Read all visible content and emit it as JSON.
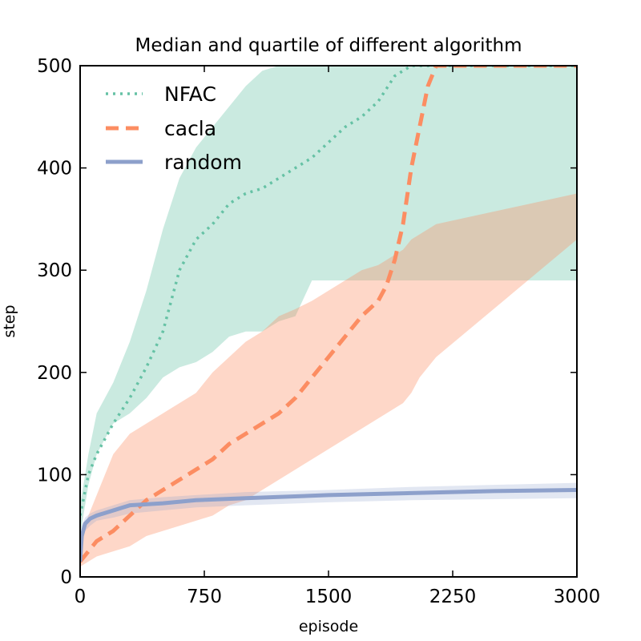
{
  "chart_data": {
    "type": "line",
    "title": "Median and quartile of different algorithm",
    "xlabel": "episode",
    "ylabel": "step",
    "xlim": [
      0,
      3000
    ],
    "ylim": [
      0,
      500
    ],
    "xticks": [
      0,
      750,
      1500,
      2250,
      3000
    ],
    "yticks": [
      0,
      100,
      200,
      300,
      400,
      500
    ],
    "xtick_labels": [
      "0",
      "750",
      "1500",
      "2250",
      "3000"
    ],
    "ytick_labels": [
      "0",
      "100",
      "200",
      "300",
      "400",
      "500"
    ],
    "grid": false,
    "legend_position": "top-left",
    "series": [
      {
        "name": "NFAC",
        "color": "#66c2a5",
        "line_style": "dotted",
        "x": [
          0,
          50,
          100,
          200,
          300,
          400,
          500,
          600,
          700,
          800,
          900,
          1000,
          1100,
          1200,
          1300,
          1400,
          1500,
          1600,
          1700,
          1800,
          1900,
          2000,
          2100,
          2200,
          3000
        ],
        "y": [
          60,
          100,
          120,
          150,
          175,
          205,
          240,
          300,
          330,
          345,
          365,
          375,
          380,
          390,
          400,
          410,
          425,
          440,
          450,
          465,
          490,
          500,
          500,
          500,
          500
        ],
        "lower": [
          40,
          90,
          120,
          150,
          160,
          175,
          195,
          205,
          210,
          220,
          235,
          240,
          240,
          250,
          255,
          290,
          290,
          290,
          290,
          290,
          290,
          290,
          290,
          290,
          290
        ],
        "upper": [
          70,
          120,
          160,
          190,
          230,
          280,
          340,
          390,
          420,
          440,
          460,
          480,
          495,
          500,
          500,
          500,
          500,
          500,
          500,
          500,
          500,
          500,
          500,
          500,
          500
        ]
      },
      {
        "name": "cacla",
        "color": "#fc8d62",
        "line_style": "dashed",
        "x": [
          0,
          100,
          200,
          300,
          400,
          500,
          600,
          700,
          800,
          900,
          1000,
          1100,
          1200,
          1300,
          1400,
          1500,
          1600,
          1700,
          1800,
          1850,
          1900,
          1950,
          2000,
          2050,
          2100,
          2150,
          3000
        ],
        "y": [
          15,
          35,
          45,
          60,
          75,
          85,
          95,
          105,
          115,
          130,
          140,
          150,
          160,
          175,
          195,
          215,
          235,
          255,
          270,
          285,
          310,
          345,
          400,
          440,
          480,
          500,
          500
        ],
        "lower": [
          10,
          20,
          25,
          30,
          40,
          45,
          50,
          55,
          60,
          70,
          75,
          85,
          95,
          105,
          115,
          125,
          135,
          145,
          155,
          160,
          165,
          170,
          180,
          195,
          205,
          215,
          330
        ],
        "upper": [
          40,
          80,
          120,
          140,
          150,
          160,
          170,
          180,
          200,
          215,
          230,
          240,
          255,
          262,
          270,
          280,
          290,
          300,
          305,
          310,
          315,
          320,
          330,
          335,
          340,
          345,
          375
        ]
      },
      {
        "name": "random",
        "color": "#8da0cb",
        "line_style": "solid",
        "x": [
          0,
          10,
          30,
          60,
          100,
          200,
          300,
          500,
          700,
          1000,
          1500,
          2000,
          2500,
          3000
        ],
        "y": [
          15,
          40,
          52,
          57,
          60,
          65,
          70,
          72,
          75,
          77,
          80,
          82,
          84,
          85
        ],
        "lower": [
          10,
          30,
          45,
          50,
          55,
          58,
          62,
          65,
          68,
          70,
          73,
          75,
          76,
          77
        ],
        "upper": [
          20,
          50,
          58,
          62,
          65,
          70,
          75,
          78,
          80,
          83,
          85,
          88,
          90,
          92
        ]
      }
    ]
  }
}
